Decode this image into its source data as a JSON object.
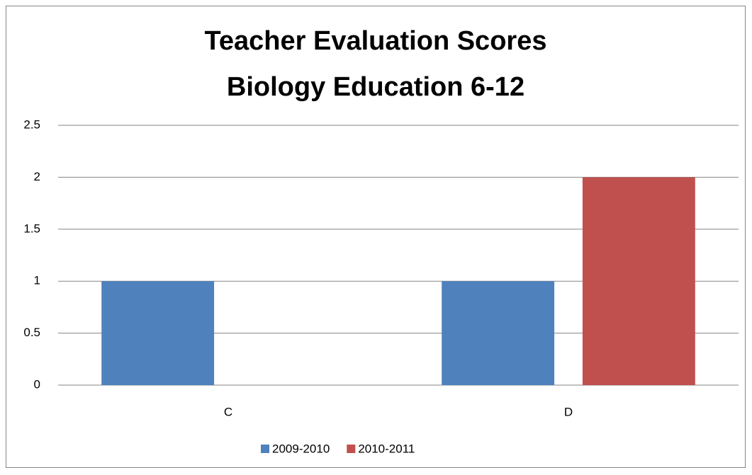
{
  "chart_data": {
    "type": "bar",
    "title": [
      "Teacher Evaluation Scores",
      "Biology Education 6-12"
    ],
    "categories": [
      "C",
      "D"
    ],
    "series": [
      {
        "name": "2009-2010",
        "color": "#4f81bd",
        "values": [
          1,
          1
        ]
      },
      {
        "name": "2010-2011",
        "color": "#c0504d",
        "values": [
          0,
          2
        ]
      }
    ],
    "ylim": [
      0,
      2.5
    ],
    "yticks": [
      0,
      0.5,
      1,
      1.5,
      2,
      2.5
    ],
    "grid": true,
    "legend": "bottom"
  }
}
